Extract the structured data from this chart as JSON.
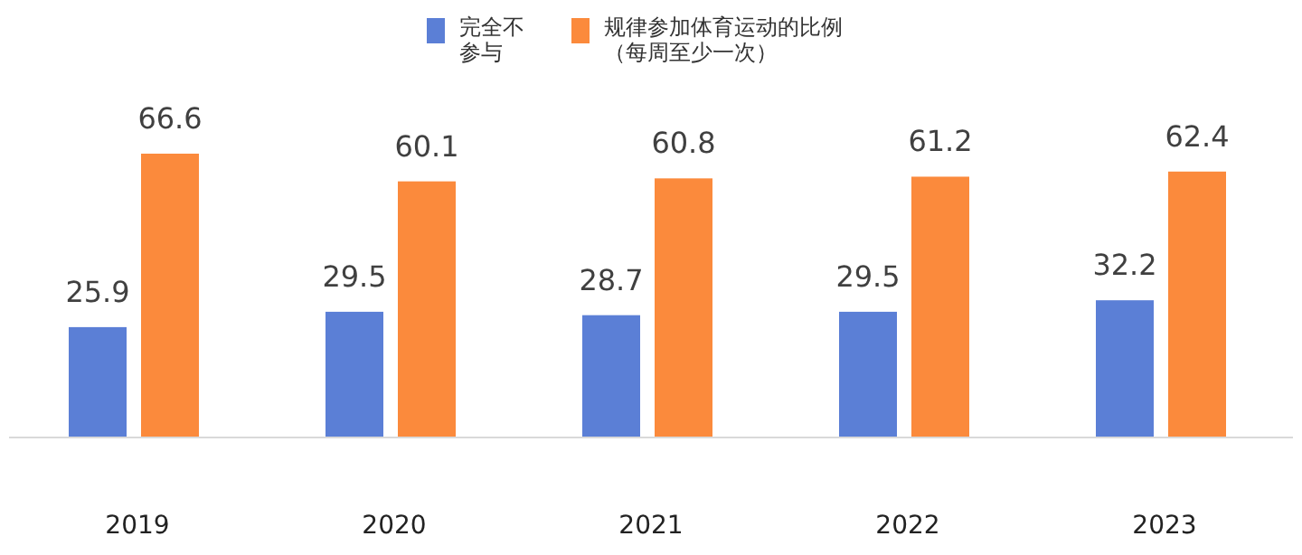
{
  "chart_data": {
    "type": "bar",
    "categories": [
      "2019",
      "2020",
      "2021",
      "2022",
      "2023"
    ],
    "series": [
      {
        "name": "完全不参与",
        "color": "#5b7fd6",
        "values": [
          25.9,
          29.5,
          28.7,
          29.5,
          32.2
        ]
      },
      {
        "name": "规律参加体育运动的比例（每周至少一次）",
        "color": "#fb8a3c",
        "values": [
          66.6,
          60.1,
          60.8,
          61.2,
          62.4
        ]
      }
    ],
    "data_labels": true,
    "legend": "top"
  }
}
